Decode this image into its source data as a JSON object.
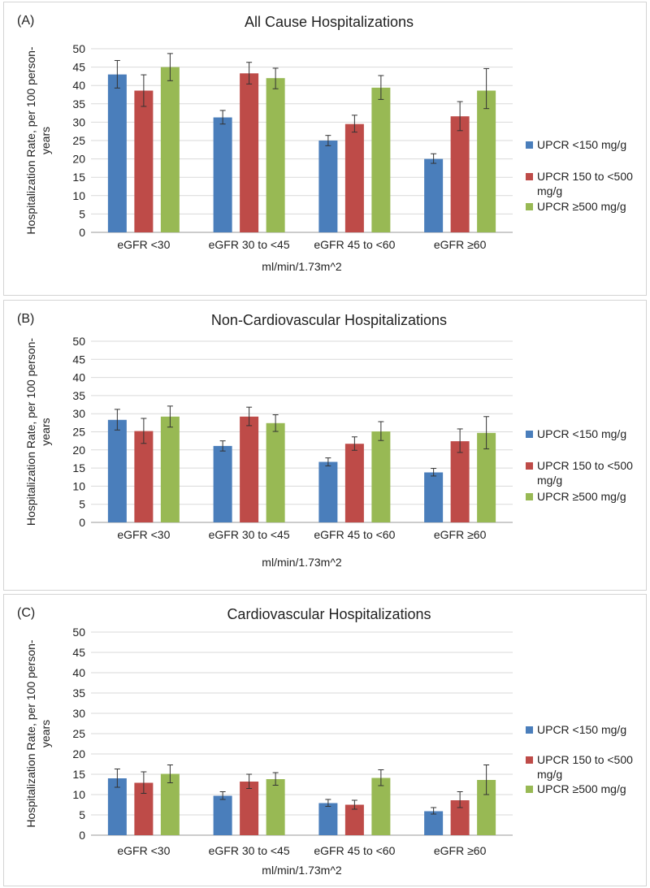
{
  "chart_data": [
    {
      "type": "bar",
      "panel_label": "(A)",
      "title": "All Cause Hospitalizations",
      "ylabel": "Hospitalization Rate, per 100 person-years",
      "ylabel_lines": [
        "Hospitalization Rate, per 100 person-",
        "years"
      ],
      "xlabel": "ml/min/1.73m^2",
      "ylim": [
        0,
        50
      ],
      "yticks": [
        "0",
        "5",
        "10",
        "15",
        "20",
        "25",
        "30",
        "35",
        "40",
        "45",
        "50"
      ],
      "categories": [
        "eGFR <30",
        "eGFR 30 to <45",
        "eGFR 45 to <60",
        "eGFR ≥60"
      ],
      "series": [
        {
          "name": "UPCR <150 mg/g",
          "legend_lines": [
            "UPCR <150 mg/g"
          ],
          "color": "#4a7ebb",
          "values": [
            43,
            31.3,
            25,
            20
          ],
          "err_low": [
            39.3,
            29.5,
            23.6,
            18.8
          ],
          "err_high": [
            46.8,
            33.2,
            26.4,
            21.4
          ]
        },
        {
          "name": "UPCR 150 to <500 mg/g",
          "legend_lines": [
            "UPCR 150 to <500",
            "mg/g"
          ],
          "color": "#be4b48",
          "values": [
            38.6,
            43.3,
            29.5,
            31.6
          ],
          "err_low": [
            34.3,
            40.4,
            27.3,
            27.7
          ],
          "err_high": [
            42.9,
            46.3,
            31.9,
            35.6
          ]
        },
        {
          "name": "UPCR ≥500 mg/g",
          "legend_lines": [
            "UPCR ≥500 mg/g"
          ],
          "color": "#98b954",
          "values": [
            45,
            42,
            39.4,
            38.6
          ],
          "err_low": [
            41.3,
            39.1,
            36.2,
            33.7
          ],
          "err_high": [
            48.7,
            44.7,
            42.7,
            44.6
          ]
        }
      ]
    },
    {
      "type": "bar",
      "panel_label": "(B)",
      "title": "Non-Cardiovascular Hospitalizations",
      "ylabel": "Hospitalization Rate, per 100 person-years",
      "ylabel_lines": [
        "Hospitalization Rate, per 100 person-",
        "years"
      ],
      "xlabel": "ml/min/1.73m^2",
      "ylim": [
        0,
        50
      ],
      "yticks": [
        "0",
        "5",
        "10",
        "15",
        "20",
        "25",
        "30",
        "35",
        "40",
        "45",
        "50"
      ],
      "categories": [
        "eGFR <30",
        "eGFR 30 to <45",
        "eGFR 45 to <60",
        "eGFR ≥60"
      ],
      "series": [
        {
          "name": "UPCR <150 mg/g",
          "legend_lines": [
            "UPCR <150 mg/g"
          ],
          "color": "#4a7ebb",
          "values": [
            28.3,
            21.1,
            16.7,
            13.8
          ],
          "err_low": [
            25.5,
            19.7,
            15.6,
            12.8
          ],
          "err_high": [
            31.2,
            22.5,
            17.8,
            14.9
          ]
        },
        {
          "name": "UPCR 150 to <500 mg/g",
          "legend_lines": [
            "UPCR 150 to <500",
            "mg/g"
          ],
          "color": "#be4b48",
          "values": [
            25.2,
            29.2,
            21.7,
            22.4
          ],
          "err_low": [
            21.8,
            26.7,
            19.9,
            19.3
          ],
          "err_high": [
            28.7,
            31.8,
            23.6,
            25.8
          ]
        },
        {
          "name": "UPCR ≥500 mg/g",
          "legend_lines": [
            "UPCR ≥500 mg/g"
          ],
          "color": "#98b954",
          "values": [
            29.2,
            27.4,
            25.1,
            24.7
          ],
          "err_low": [
            26.3,
            25.1,
            22.6,
            20.3
          ],
          "err_high": [
            32.1,
            29.7,
            27.8,
            29.2
          ]
        }
      ]
    },
    {
      "type": "bar",
      "panel_label": "(C)",
      "title": "Cardiovascular Hospitalizations",
      "ylabel": "Hospitalization Rate, per 100 person-years",
      "ylabel_lines": [
        "Hospitalization Rate, per 100 person-",
        "years"
      ],
      "xlabel": "ml/min/1.73m^2",
      "ylim": [
        0,
        50
      ],
      "yticks": [
        "0",
        "5",
        "10",
        "15",
        "20",
        "25",
        "30",
        "35",
        "40",
        "45",
        "50"
      ],
      "categories": [
        "eGFR <30",
        "eGFR 30 to <45",
        "eGFR 45 to <60",
        "eGFR ≥60"
      ],
      "series": [
        {
          "name": "UPCR <150 mg/g",
          "legend_lines": [
            "UPCR <150 mg/g"
          ],
          "color": "#4a7ebb",
          "values": [
            14,
            9.7,
            7.9,
            5.9
          ],
          "err_low": [
            11.8,
            8.8,
            7.1,
            5.2
          ],
          "err_high": [
            16.3,
            10.7,
            8.8,
            6.8
          ]
        },
        {
          "name": "UPCR 150 to <500 mg/g",
          "legend_lines": [
            "UPCR 150 to <500",
            "mg/g"
          ],
          "color": "#be4b48",
          "values": [
            12.9,
            13.2,
            7.5,
            8.6
          ],
          "err_low": [
            10.3,
            11.5,
            6.4,
            6.8
          ],
          "err_high": [
            15.6,
            15,
            8.6,
            10.7
          ]
        },
        {
          "name": "UPCR ≥500 mg/g",
          "legend_lines": [
            "UPCR ≥500 mg/g"
          ],
          "color": "#98b954",
          "values": [
            15.1,
            13.8,
            14.1,
            13.6
          ],
          "err_low": [
            12.9,
            12.3,
            12.2,
            10
          ],
          "err_high": [
            17.3,
            15.4,
            16.1,
            17.3
          ]
        }
      ]
    }
  ]
}
